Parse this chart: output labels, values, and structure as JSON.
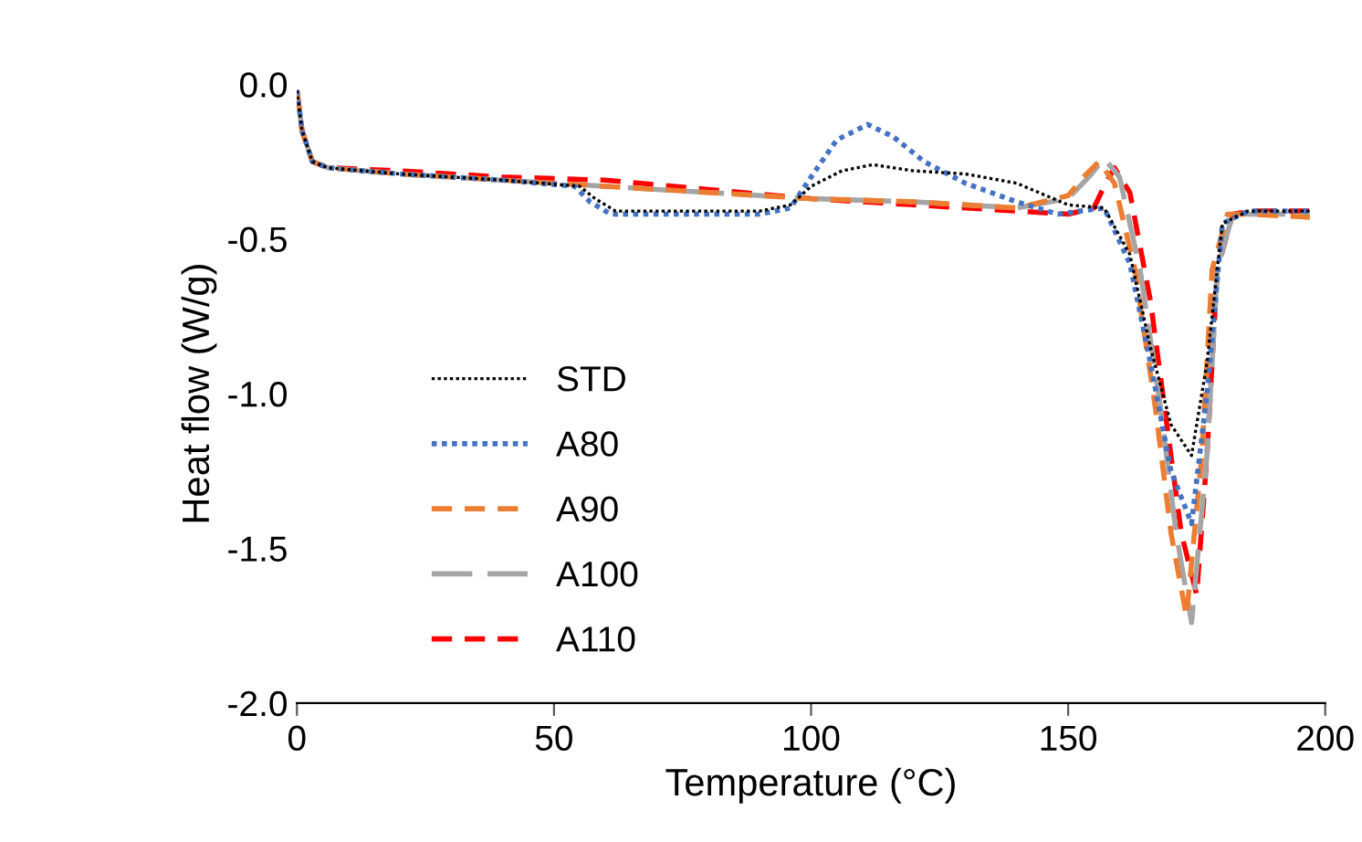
{
  "chart_data": {
    "type": "line",
    "xlabel": "Temperature (°C)",
    "ylabel": "Heat flow (W/g)",
    "xlim": [
      0,
      200
    ],
    "ylim": [
      -2.0,
      0.0
    ],
    "xticks": [
      0,
      50,
      100,
      150,
      200
    ],
    "yticks": [
      {
        "value": 0.0,
        "label": "0.0"
      },
      {
        "value": -0.5,
        "label": "-0.5"
      },
      {
        "value": -1.0,
        "label": "-1.0"
      },
      {
        "value": -1.5,
        "label": "-1.5"
      },
      {
        "value": -2.0,
        "label": "-2.0"
      }
    ],
    "grid": false,
    "legend": "lower left",
    "series": [
      {
        "name": "STD",
        "color": "#000000",
        "line_style": "dotted",
        "x": [
          0,
          1,
          3,
          6,
          20,
          40,
          55,
          58,
          62,
          70,
          90,
          96,
          100,
          106,
          112,
          120,
          130,
          140,
          150,
          157,
          162,
          166,
          170,
          174,
          177,
          180,
          185,
          197
        ],
        "values": [
          -0.02,
          -0.15,
          -0.25,
          -0.27,
          -0.29,
          -0.31,
          -0.33,
          -0.37,
          -0.41,
          -0.41,
          -0.41,
          -0.39,
          -0.33,
          -0.28,
          -0.26,
          -0.28,
          -0.29,
          -0.32,
          -0.39,
          -0.4,
          -0.55,
          -0.85,
          -1.1,
          -1.2,
          -0.9,
          -0.45,
          -0.41,
          -0.41
        ]
      },
      {
        "name": "A80",
        "color": "#4472c4",
        "line_style": "dotted",
        "x": [
          0,
          1,
          3,
          6,
          20,
          40,
          54,
          57,
          61,
          70,
          90,
          96,
          100,
          105,
          111,
          116,
          122,
          130,
          140,
          148,
          157,
          162,
          166,
          170,
          174,
          177,
          180,
          185,
          197
        ],
        "values": [
          -0.02,
          -0.15,
          -0.25,
          -0.27,
          -0.29,
          -0.31,
          -0.33,
          -0.38,
          -0.42,
          -0.42,
          -0.42,
          -0.4,
          -0.3,
          -0.18,
          -0.13,
          -0.17,
          -0.25,
          -0.32,
          -0.38,
          -0.42,
          -0.4,
          -0.58,
          -0.9,
          -1.25,
          -1.42,
          -1.0,
          -0.45,
          -0.41,
          -0.41
        ]
      },
      {
        "name": "A90",
        "color": "#ed7d31",
        "line_style": "dashed",
        "x": [
          0,
          1,
          3,
          6,
          20,
          40,
          60,
          80,
          100,
          120,
          140,
          150,
          153,
          156,
          159,
          163,
          167,
          170,
          173,
          176,
          178,
          181,
          185,
          197
        ],
        "values": [
          -0.02,
          -0.15,
          -0.25,
          -0.27,
          -0.29,
          -0.31,
          -0.33,
          -0.35,
          -0.37,
          -0.38,
          -0.4,
          -0.36,
          -0.3,
          -0.25,
          -0.32,
          -0.6,
          -1.05,
          -1.45,
          -1.72,
          -1.2,
          -0.6,
          -0.42,
          -0.42,
          -0.43
        ]
      },
      {
        "name": "A100",
        "color": "#a5a5a5",
        "line_style": "longdash",
        "x": [
          0,
          1,
          3,
          6,
          20,
          40,
          60,
          80,
          100,
          120,
          140,
          150,
          154,
          157,
          160,
          164,
          168,
          171,
          174,
          177,
          179,
          182,
          186,
          197
        ],
        "values": [
          -0.02,
          -0.15,
          -0.25,
          -0.27,
          -0.29,
          -0.31,
          -0.33,
          -0.35,
          -0.37,
          -0.38,
          -0.4,
          -0.37,
          -0.3,
          -0.24,
          -0.3,
          -0.6,
          -1.05,
          -1.45,
          -1.74,
          -1.2,
          -0.6,
          -0.42,
          -0.42,
          -0.42
        ]
      },
      {
        "name": "A110",
        "color": "#ff0000",
        "line_style": "dashed",
        "x": [
          0,
          1,
          3,
          6,
          20,
          40,
          60,
          80,
          100,
          120,
          140,
          150,
          155,
          157,
          159,
          162,
          166,
          170,
          172,
          175,
          177,
          179,
          182,
          186,
          197
        ],
        "values": [
          -0.02,
          -0.15,
          -0.25,
          -0.27,
          -0.28,
          -0.3,
          -0.31,
          -0.34,
          -0.37,
          -0.39,
          -0.41,
          -0.42,
          -0.4,
          -0.33,
          -0.27,
          -0.35,
          -0.7,
          -1.2,
          -1.45,
          -1.65,
          -1.2,
          -0.6,
          -0.42,
          -0.41,
          -0.41
        ]
      }
    ]
  }
}
